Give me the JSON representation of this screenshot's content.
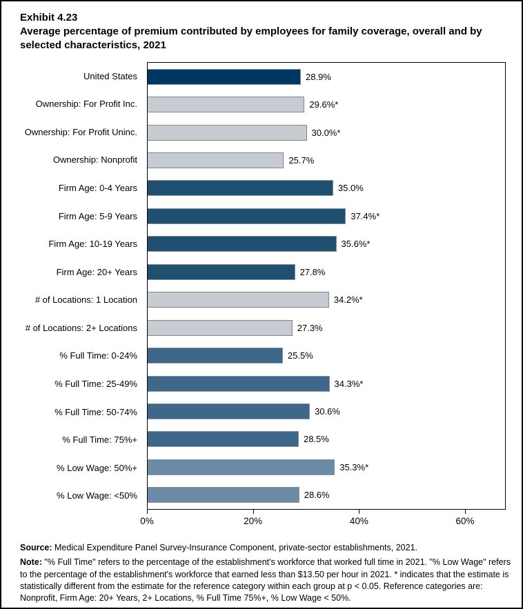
{
  "header": {
    "exhibit": "Exhibit 4.23",
    "title": "Average percentage of premium contributed by employees for family coverage, overall and by selected characteristics, 2021"
  },
  "footer": {
    "source_label": "Source:",
    "source_text": " Medical Expenditure Panel Survey-Insurance Component, private-sector establishments, 2021.",
    "note_label": "Note:",
    "note_text": " \"% Full Time\" refers to the percentage of the establishment's workforce that worked full time in 2021. \"% Low Wage\" refers to the percentage of the establishment's workforce that earned less than $13.50 per hour in 2021. * indicates that the estimate is statistically different from the estimate for the reference category within each group at p < 0.05.  Reference categories are: Nonprofit, Firm Age: 20+ Years, 2+ Locations, % Full Time 75%+, % Low Wage < 50%."
  },
  "chart_data": {
    "type": "bar",
    "orientation": "horizontal",
    "title": "Average percentage of premium contributed by employees for family coverage, overall and by selected characteristics, 2021",
    "xlabel": "",
    "ylabel": "",
    "xlim": [
      0,
      67.7
    ],
    "x_ticks": [
      0,
      20,
      40,
      60
    ],
    "x_tick_labels": [
      "0%",
      "20%",
      "40%",
      "60%"
    ],
    "grid": false,
    "legend": false,
    "categories": [
      "United States",
      "Ownership: For Profit Inc.",
      "Ownership: For Profit Uninc.",
      "Ownership: Nonprofit",
      "Firm Age: 0-4 Years",
      "Firm Age: 5-9 Years",
      "Firm Age: 10-19 Years",
      "Firm Age: 20+ Years",
      "# of Locations: 1 Location",
      "# of Locations: 2+ Locations",
      "% Full Time: 0-24%",
      "% Full Time: 25-49%",
      "% Full Time: 50-74%",
      "% Full Time: 75%+",
      "% Low Wage: 50%+",
      "% Low Wage: <50%"
    ],
    "values": [
      28.9,
      29.6,
      30.0,
      25.7,
      35.0,
      37.4,
      35.6,
      27.8,
      34.2,
      27.3,
      25.5,
      34.3,
      30.6,
      28.5,
      35.3,
      28.6
    ],
    "value_labels": [
      "28.9%",
      "29.6%*",
      "30.0%*",
      "25.7%",
      "35.0%",
      "37.4%*",
      "35.6%*",
      "27.8%",
      "34.2%*",
      "27.3%",
      "25.5%",
      "34.3%*",
      "30.6%",
      "28.5%",
      "35.3%*",
      "28.6%"
    ],
    "bar_color_keys": [
      "navy_dark",
      "gray",
      "gray",
      "gray",
      "navy",
      "navy",
      "navy",
      "navy",
      "gray",
      "gray",
      "blue",
      "blue",
      "blue",
      "blue",
      "steel",
      "steel"
    ],
    "colors": {
      "navy_dark": "#003764",
      "navy": "#20506f",
      "gray": "#c7ccd3",
      "blue": "#3e678a",
      "steel": "#6c8ba7",
      "gray_border": "#7f858b",
      "frame": "#000000"
    }
  }
}
